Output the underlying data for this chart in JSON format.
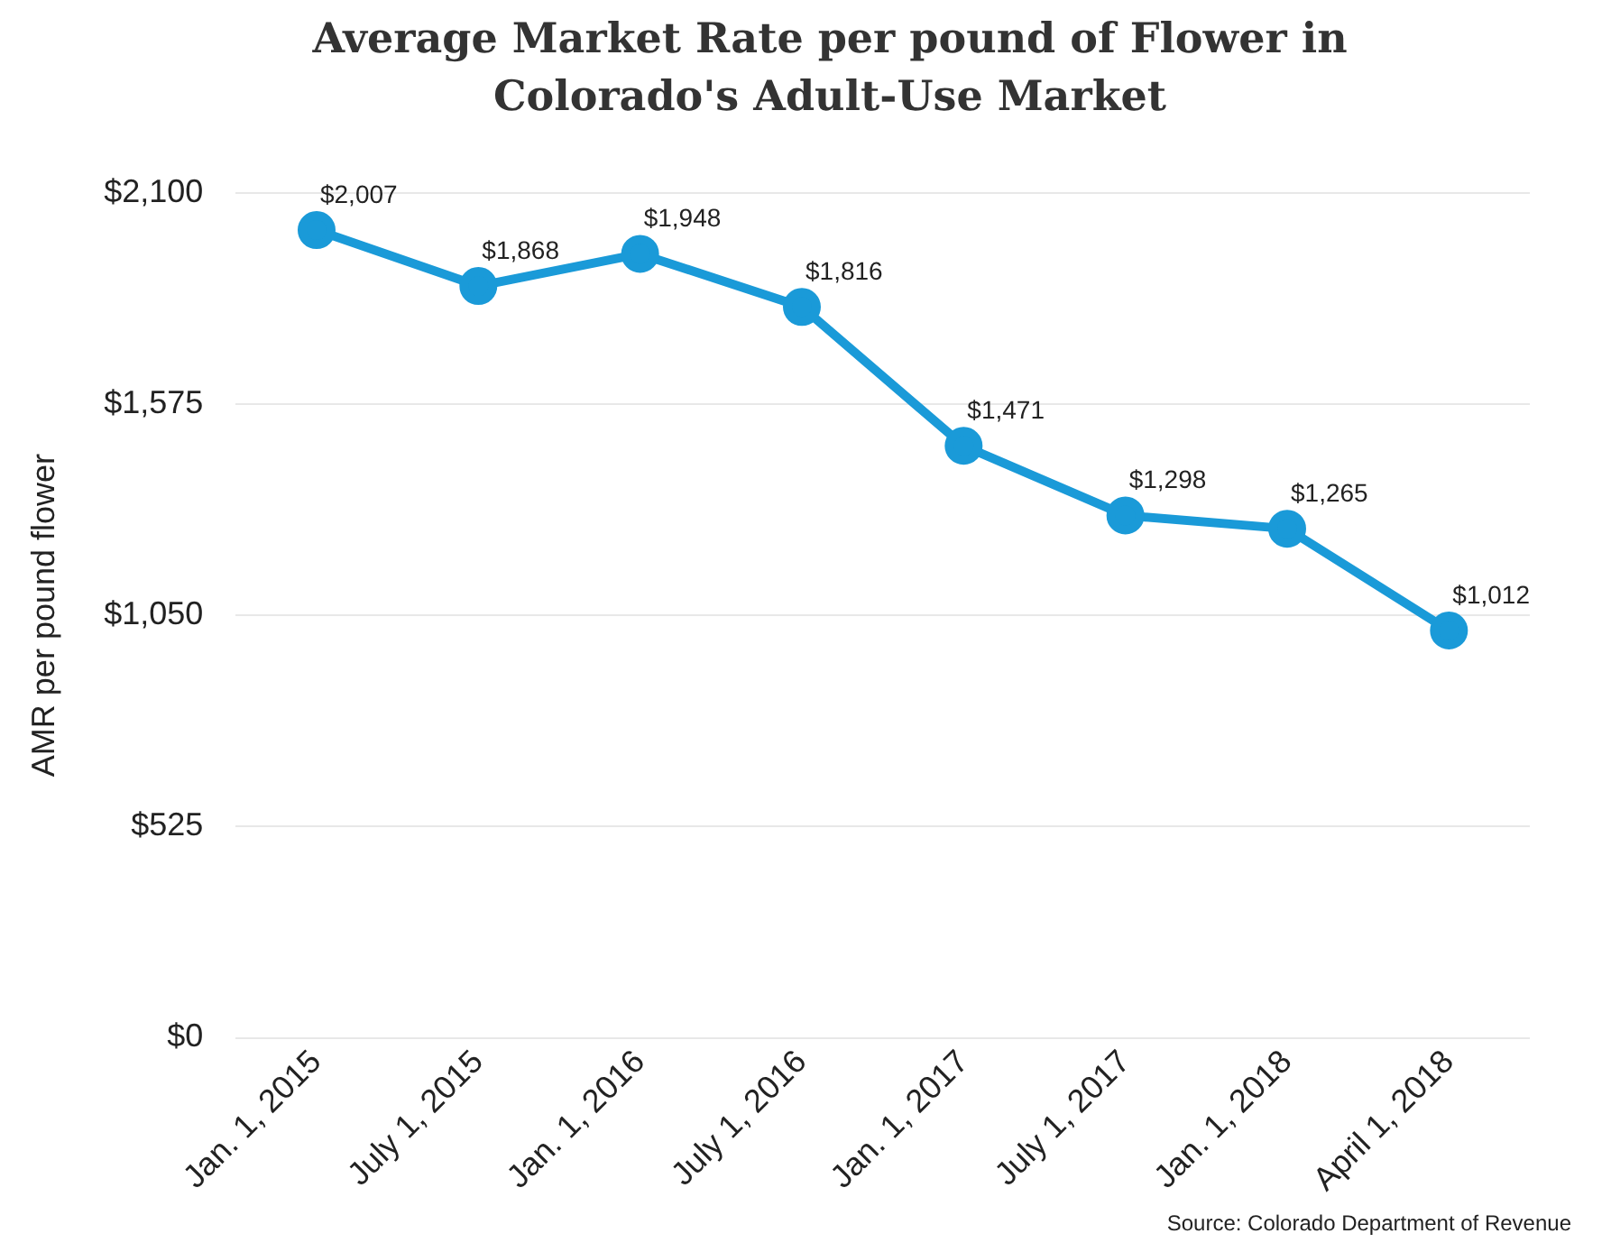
{
  "chart_data": {
    "type": "line",
    "title": "Average Market Rate per pound of Flower in Colorado's Adult-Use Market",
    "ylabel": "AMR per pound flower",
    "annotations": [
      "Source: Colorado Department of Revenue"
    ],
    "categories": [
      "Jan. 1, 2015",
      "July 1, 2015",
      "Jan. 1, 2016",
      "July 1, 2016",
      "Jan. 1, 2017",
      "July 1, 2017",
      "Jan. 1, 2018",
      "April 1, 2018"
    ],
    "series": [
      {
        "color": "#1a9ad8",
        "values": [
          2007,
          1868,
          1948,
          1816,
          1471,
          1298,
          1265,
          1012
        ],
        "value_labels": [
          "$2,007",
          "$1,868",
          "$1,948",
          "$1,816",
          "$1,471",
          "$1,298",
          "$1,265",
          "$1,012"
        ]
      }
    ],
    "ylim": [
      0,
      2100
    ],
    "yticks": [
      {
        "value": 0,
        "label": "$0"
      },
      {
        "value": 525,
        "label": "$525"
      },
      {
        "value": 1050,
        "label": "$1,050"
      },
      {
        "value": 1575,
        "label": "$1,575"
      },
      {
        "value": 2100,
        "label": "$2,100"
      }
    ],
    "grid": "y",
    "legend": false,
    "marker": "circle",
    "line_style": "solid"
  }
}
